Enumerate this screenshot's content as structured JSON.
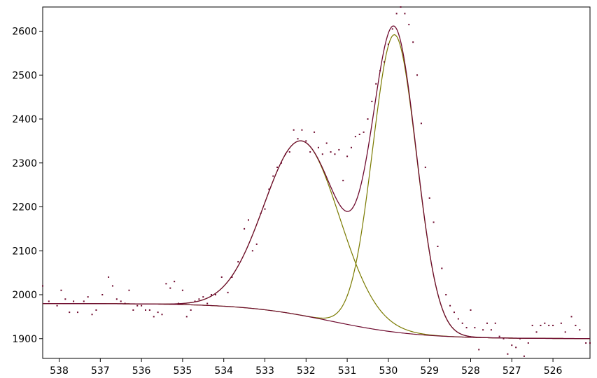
{
  "chart_data": {
    "type": "line",
    "title": "",
    "xlabel": "",
    "ylabel": "",
    "x_reversed": true,
    "xlim": [
      538.4,
      525.1
    ],
    "ylim": [
      1855,
      2655
    ],
    "x_ticks": [
      538,
      537,
      536,
      535,
      534,
      533,
      532,
      531,
      530,
      529,
      528,
      527,
      526
    ],
    "y_ticks": [
      1900,
      2000,
      2100,
      2200,
      2300,
      2400,
      2500,
      2600
    ],
    "grid": false,
    "legend": "none",
    "colors": {
      "envelope": "#6e0a2e",
      "components": "#7a7a00",
      "background": "#6e0a2e",
      "points": "#6e0a2e",
      "axis": "#000000"
    },
    "model": {
      "background_edge": [
        1980,
        1900
      ],
      "background_center_x": 531.4,
      "background_width": 1.05,
      "peaks": [
        {
          "center": 532.1,
          "height": 2350,
          "fwhm": 2.15
        },
        {
          "center": 529.85,
          "height": 2592,
          "fwhm": 1.25
        }
      ],
      "x_range": [
        538.4,
        525.1
      ]
    },
    "measured_points": [
      [
        538.4,
        2020
      ],
      [
        538.25,
        1985
      ],
      [
        538.05,
        1975
      ],
      [
        537.95,
        2010
      ],
      [
        537.85,
        1990
      ],
      [
        537.75,
        1960
      ],
      [
        537.65,
        1985
      ],
      [
        537.55,
        1960
      ],
      [
        537.4,
        1985
      ],
      [
        537.3,
        1995
      ],
      [
        537.2,
        1955
      ],
      [
        537.1,
        1965
      ],
      [
        536.95,
        2000
      ],
      [
        536.8,
        2040
      ],
      [
        536.7,
        2020
      ],
      [
        536.6,
        1990
      ],
      [
        536.5,
        1985
      ],
      [
        536.4,
        1980
      ],
      [
        536.3,
        2010
      ],
      [
        536.2,
        1965
      ],
      [
        536.1,
        1975
      ],
      [
        536.0,
        1975
      ],
      [
        535.9,
        1965
      ],
      [
        535.8,
        1965
      ],
      [
        535.7,
        1950
      ],
      [
        535.6,
        1960
      ],
      [
        535.5,
        1955
      ],
      [
        535.4,
        2025
      ],
      [
        535.3,
        2015
      ],
      [
        535.2,
        2030
      ],
      [
        535.1,
        1980
      ],
      [
        535.0,
        2010
      ],
      [
        534.9,
        1950
      ],
      [
        534.8,
        1965
      ],
      [
        534.7,
        1985
      ],
      [
        534.6,
        1990
      ],
      [
        534.5,
        1995
      ],
      [
        534.4,
        1980
      ],
      [
        534.3,
        2000
      ],
      [
        534.2,
        2000
      ],
      [
        534.05,
        2040
      ],
      [
        533.9,
        2005
      ],
      [
        533.8,
        2040
      ],
      [
        533.65,
        2075
      ],
      [
        533.5,
        2150
      ],
      [
        533.4,
        2170
      ],
      [
        533.3,
        2100
      ],
      [
        533.2,
        2115
      ],
      [
        533.1,
        2185
      ],
      [
        533.0,
        2195
      ],
      [
        532.9,
        2240
      ],
      [
        532.8,
        2270
      ],
      [
        532.7,
        2290
      ],
      [
        532.6,
        2300
      ],
      [
        532.5,
        2320
      ],
      [
        532.4,
        2325
      ],
      [
        532.3,
        2375
      ],
      [
        532.2,
        2355
      ],
      [
        532.1,
        2375
      ],
      [
        532.0,
        2350
      ],
      [
        531.9,
        2325
      ],
      [
        531.8,
        2370
      ],
      [
        531.7,
        2335
      ],
      [
        531.6,
        2320
      ],
      [
        531.5,
        2345
      ],
      [
        531.4,
        2325
      ],
      [
        531.3,
        2320
      ],
      [
        531.2,
        2330
      ],
      [
        531.1,
        2260
      ],
      [
        531.0,
        2315
      ],
      [
        530.9,
        2335
      ],
      [
        530.8,
        2360
      ],
      [
        530.7,
        2365
      ],
      [
        530.6,
        2370
      ],
      [
        530.5,
        2400
      ],
      [
        530.4,
        2440
      ],
      [
        530.3,
        2480
      ],
      [
        530.2,
        2510
      ],
      [
        530.1,
        2530
      ],
      [
        530.0,
        2570
      ],
      [
        529.9,
        2605
      ],
      [
        529.8,
        2640
      ],
      [
        529.7,
        2655
      ],
      [
        529.6,
        2640
      ],
      [
        529.5,
        2615
      ],
      [
        529.4,
        2575
      ],
      [
        529.3,
        2500
      ],
      [
        529.2,
        2390
      ],
      [
        529.1,
        2290
      ],
      [
        529.0,
        2220
      ],
      [
        528.9,
        2165
      ],
      [
        528.8,
        2110
      ],
      [
        528.7,
        2060
      ],
      [
        528.6,
        2000
      ],
      [
        528.5,
        1975
      ],
      [
        528.4,
        1960
      ],
      [
        528.3,
        1945
      ],
      [
        528.2,
        1935
      ],
      [
        528.1,
        1925
      ],
      [
        528.0,
        1965
      ],
      [
        527.9,
        1925
      ],
      [
        527.8,
        1875
      ],
      [
        527.7,
        1920
      ],
      [
        527.6,
        1935
      ],
      [
        527.5,
        1920
      ],
      [
        527.4,
        1935
      ],
      [
        527.3,
        1905
      ],
      [
        527.2,
        1900
      ],
      [
        527.1,
        1865
      ],
      [
        527.0,
        1885
      ],
      [
        526.9,
        1880
      ],
      [
        526.8,
        1900
      ],
      [
        526.7,
        1860
      ],
      [
        526.6,
        1890
      ],
      [
        526.5,
        1930
      ],
      [
        526.4,
        1915
      ],
      [
        526.3,
        1930
      ],
      [
        526.2,
        1935
      ],
      [
        526.1,
        1930
      ],
      [
        526.0,
        1930
      ],
      [
        525.8,
        1935
      ],
      [
        525.7,
        1915
      ],
      [
        525.55,
        1950
      ],
      [
        525.45,
        1930
      ],
      [
        525.35,
        1920
      ],
      [
        525.2,
        1890
      ],
      [
        525.1,
        1890
      ]
    ]
  }
}
